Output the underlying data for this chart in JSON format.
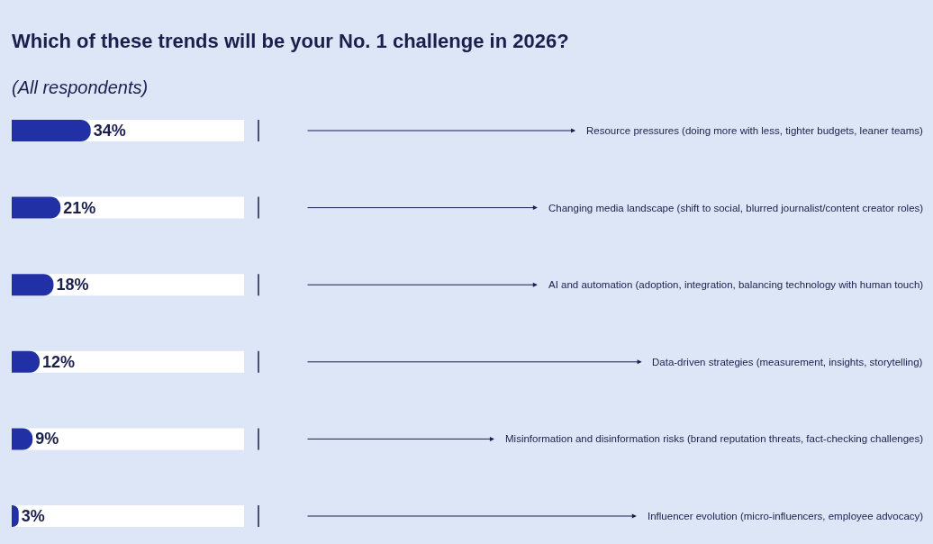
{
  "chart_data": {
    "type": "bar",
    "orientation": "horizontal",
    "title": "Which of these trends will be your No. 1 challenge in 2026?",
    "subtitle": "(All respondents)",
    "categories": [
      "Resource pressures (doing more with less, tighter budgets, leaner teams)",
      "Changing media landscape (shift to social, blurred journalist/content creator roles)",
      "AI and automation (adoption, integration, balancing technology with human touch)",
      "Data-driven strategies (measurement, insights, storytelling)",
      "Misinformation and disinformation risks (brand reputation threats, fact-checking challenges)",
      "Influencer evolution (micro-influencers, employee advocacy)"
    ],
    "values": [
      34,
      21,
      18,
      12,
      9,
      3
    ],
    "value_labels": [
      "34%",
      "21%",
      "18%",
      "12%",
      "9%",
      "3%"
    ],
    "color": "#2230a6",
    "xlim": [
      0,
      100
    ]
  }
}
